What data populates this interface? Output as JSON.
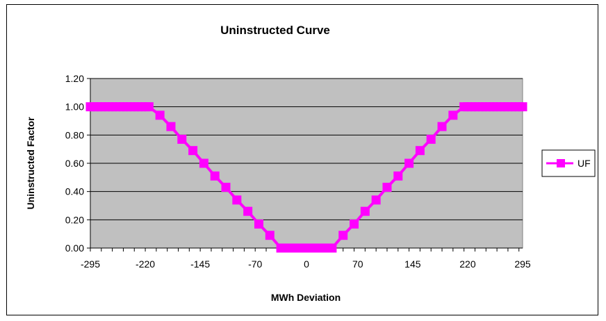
{
  "chart_data": {
    "type": "line",
    "title": "Uninstructed Curve",
    "xlabel": "MWh Deviation",
    "ylabel": "Uninstructed Factor",
    "ylim": [
      0,
      1.2
    ],
    "yticks": [
      "0.00",
      "0.20",
      "0.40",
      "0.60",
      "0.80",
      "1.00",
      "1.20"
    ],
    "xticks": [
      "-295",
      "-220",
      "-145",
      "-70",
      "0",
      "70",
      "145",
      "220",
      "295"
    ],
    "legend_position": "right",
    "grid": true,
    "background_color": "#C0C0C0",
    "series_color": "#FF00FF",
    "series": [
      {
        "name": "UF",
        "marker": "square",
        "x": [
          -295,
          -290,
          -285,
          -280,
          -275,
          -270,
          -265,
          -260,
          -255,
          -250,
          -245,
          -240,
          -235,
          -230,
          -225,
          -220,
          -215,
          -200,
          -185,
          -170,
          -155,
          -140,
          -125,
          -110,
          -95,
          -80,
          -65,
          -50,
          -35,
          -30,
          -25,
          -20,
          -15,
          -10,
          -5,
          0,
          5,
          10,
          15,
          20,
          25,
          30,
          35,
          50,
          65,
          80,
          95,
          110,
          125,
          140,
          155,
          170,
          185,
          200,
          215,
          220,
          225,
          230,
          235,
          240,
          245,
          250,
          255,
          260,
          265,
          270,
          275,
          280,
          285,
          290,
          295
        ],
        "values": [
          1,
          1,
          1,
          1,
          1,
          1,
          1,
          1,
          1,
          1,
          1,
          1,
          1,
          1,
          1,
          1,
          1,
          0.94,
          0.86,
          0.77,
          0.69,
          0.6,
          0.51,
          0.43,
          0.34,
          0.26,
          0.17,
          0.09,
          0,
          0,
          0,
          0,
          0,
          0,
          0,
          0,
          0,
          0,
          0,
          0,
          0,
          0,
          0,
          0.09,
          0.17,
          0.26,
          0.34,
          0.43,
          0.51,
          0.6,
          0.69,
          0.77,
          0.86,
          0.94,
          1,
          1,
          1,
          1,
          1,
          1,
          1,
          1,
          1,
          1,
          1,
          1,
          1,
          1,
          1,
          1,
          1
        ]
      }
    ]
  }
}
